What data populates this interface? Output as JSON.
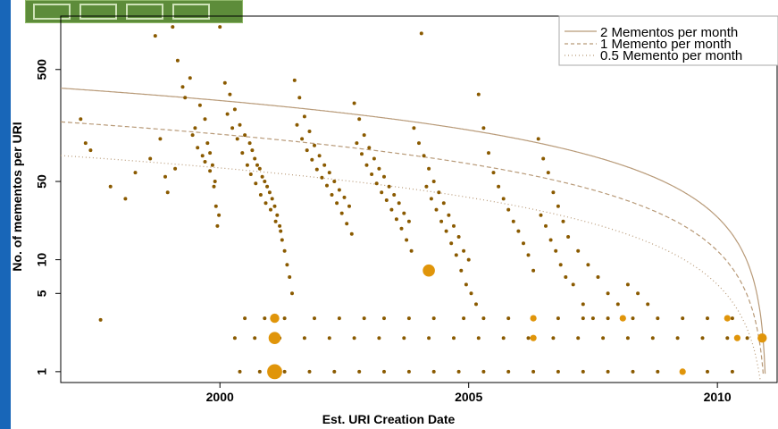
{
  "toolbar": {
    "icons": [
      "first-icon",
      "prev-icon",
      "next-icon",
      "last-icon"
    ]
  },
  "chart_data": {
    "type": "scatter",
    "title": "",
    "xlabel": "Est. URI Creation Date",
    "ylabel": "No. of mementos per URI",
    "xlim": [
      1996.8,
      2011.2
    ],
    "ylim": [
      0.8,
      1500
    ],
    "ylog": true,
    "x_ticks": [
      2000,
      2005,
      2010
    ],
    "x_tick_labels": [
      "2000",
      "2005",
      "2010"
    ],
    "y_ticks": [
      1,
      5,
      10,
      50,
      500
    ],
    "y_tick_labels": [
      "1",
      "5",
      "10",
      "50",
      "500"
    ],
    "colors": {
      "points": "#8a5a00",
      "weighted": "#e0950a",
      "curves": "#b89a78",
      "background": "#1866b8",
      "toolbar": "#5d8c3a"
    },
    "legend": {
      "position": "top-right",
      "entries": [
        {
          "label": "2 Mementos per month",
          "style": "solid",
          "rate": 2
        },
        {
          "label": "1 Memento per month",
          "style": "dashed",
          "rate": 1
        },
        {
          "label": "0.5 Memento per month",
          "style": "dotted",
          "rate": 0.5
        }
      ]
    },
    "end_date": 2011,
    "points": [
      [
        1997.2,
        180
      ],
      [
        1997.3,
        110
      ],
      [
        1997.4,
        95
      ],
      [
        1997.6,
        2.9
      ],
      [
        1997.8,
        45
      ],
      [
        1998.1,
        35
      ],
      [
        1998.3,
        60
      ],
      [
        1998.6,
        80
      ],
      [
        1998.7,
        1000
      ],
      [
        1998.8,
        120
      ],
      [
        1998.9,
        55
      ],
      [
        1998.95,
        40
      ],
      [
        1999.1,
        65
      ],
      [
        1999.3,
        280
      ],
      [
        1999.4,
        420
      ],
      [
        1999.5,
        150
      ],
      [
        1999.6,
        240
      ],
      [
        1999.7,
        180
      ],
      [
        1999.75,
        110
      ],
      [
        1999.8,
        90
      ],
      [
        1999.85,
        70
      ],
      [
        1999.9,
        50
      ],
      [
        1999.92,
        30
      ],
      [
        1999.95,
        20
      ],
      [
        1999.05,
        1200
      ],
      [
        1999.15,
        600
      ],
      [
        1999.25,
        350
      ],
      [
        1999.45,
        130
      ],
      [
        1999.55,
        100
      ],
      [
        1999.65,
        85
      ],
      [
        1999.7,
        75
      ],
      [
        1999.8,
        62
      ],
      [
        1999.88,
        45
      ],
      [
        1999.98,
        25
      ],
      [
        2000.0,
        1200
      ],
      [
        2000.1,
        380
      ],
      [
        2000.2,
        300
      ],
      [
        2000.3,
        220
      ],
      [
        2000.4,
        160
      ],
      [
        2000.5,
        130
      ],
      [
        2000.6,
        110
      ],
      [
        2000.65,
        95
      ],
      [
        2000.7,
        80
      ],
      [
        2000.75,
        70
      ],
      [
        2000.8,
        65
      ],
      [
        2000.85,
        55
      ],
      [
        2000.9,
        50
      ],
      [
        2000.95,
        45
      ],
      [
        2001.0,
        40
      ],
      [
        2001.05,
        35
      ],
      [
        2001.1,
        30
      ],
      [
        2001.15,
        25
      ],
      [
        2001.2,
        20
      ],
      [
        2001.25,
        15
      ],
      [
        2001.3,
        12
      ],
      [
        2001.35,
        9
      ],
      [
        2001.4,
        7
      ],
      [
        2001.45,
        5
      ],
      [
        2000.15,
        200
      ],
      [
        2000.25,
        150
      ],
      [
        2000.35,
        120
      ],
      [
        2000.45,
        90
      ],
      [
        2000.55,
        70
      ],
      [
        2000.62,
        58
      ],
      [
        2000.72,
        48
      ],
      [
        2000.82,
        38
      ],
      [
        2000.92,
        32
      ],
      [
        2001.02,
        28
      ],
      [
        2001.12,
        22
      ],
      [
        2001.22,
        18
      ],
      [
        2001.5,
        400
      ],
      [
        2001.6,
        280
      ],
      [
        2001.7,
        190
      ],
      [
        2001.8,
        140
      ],
      [
        2001.9,
        105
      ],
      [
        2002.0,
        85
      ],
      [
        2002.1,
        70
      ],
      [
        2002.2,
        60
      ],
      [
        2002.3,
        50
      ],
      [
        2002.4,
        42
      ],
      [
        2002.5,
        36
      ],
      [
        2002.6,
        30
      ],
      [
        2001.55,
        160
      ],
      [
        2001.65,
        120
      ],
      [
        2001.75,
        95
      ],
      [
        2001.85,
        78
      ],
      [
        2001.95,
        64
      ],
      [
        2002.05,
        54
      ],
      [
        2002.15,
        46
      ],
      [
        2002.25,
        38
      ],
      [
        2002.35,
        32
      ],
      [
        2002.45,
        26
      ],
      [
        2002.55,
        21
      ],
      [
        2002.65,
        17
      ],
      [
        2002.7,
        250
      ],
      [
        2002.8,
        180
      ],
      [
        2002.9,
        130
      ],
      [
        2003.0,
        100
      ],
      [
        2003.1,
        80
      ],
      [
        2003.2,
        65
      ],
      [
        2003.3,
        55
      ],
      [
        2003.4,
        45
      ],
      [
        2003.5,
        38
      ],
      [
        2003.6,
        32
      ],
      [
        2003.7,
        26
      ],
      [
        2003.8,
        22
      ],
      [
        2002.75,
        110
      ],
      [
        2002.85,
        88
      ],
      [
        2002.95,
        70
      ],
      [
        2003.05,
        58
      ],
      [
        2003.15,
        48
      ],
      [
        2003.25,
        40
      ],
      [
        2003.35,
        34
      ],
      [
        2003.45,
        28
      ],
      [
        2003.55,
        23
      ],
      [
        2003.65,
        19
      ],
      [
        2003.75,
        15
      ],
      [
        2003.85,
        12
      ],
      [
        2003.9,
        150
      ],
      [
        2004.0,
        110
      ],
      [
        2004.1,
        85
      ],
      [
        2004.2,
        65
      ],
      [
        2004.3,
        50
      ],
      [
        2004.4,
        40
      ],
      [
        2004.5,
        32
      ],
      [
        2004.6,
        25
      ],
      [
        2004.7,
        20
      ],
      [
        2004.8,
        16
      ],
      [
        2004.9,
        12
      ],
      [
        2005.0,
        10
      ],
      [
        2004.05,
        1050
      ],
      [
        2004.15,
        45
      ],
      [
        2004.25,
        35
      ],
      [
        2004.35,
        28
      ],
      [
        2004.45,
        22
      ],
      [
        2004.55,
        18
      ],
      [
        2004.65,
        14
      ],
      [
        2004.75,
        11
      ],
      [
        2004.85,
        8
      ],
      [
        2004.95,
        6
      ],
      [
        2005.05,
        5
      ],
      [
        2005.15,
        4
      ],
      [
        2005.2,
        300
      ],
      [
        2005.3,
        150
      ],
      [
        2005.4,
        90
      ],
      [
        2005.5,
        60
      ],
      [
        2005.6,
        45
      ],
      [
        2005.7,
        35
      ],
      [
        2005.8,
        28
      ],
      [
        2005.9,
        22
      ],
      [
        2006.0,
        18
      ],
      [
        2006.1,
        14
      ],
      [
        2006.2,
        11
      ],
      [
        2006.3,
        8
      ],
      [
        2006.4,
        120
      ],
      [
        2006.5,
        80
      ],
      [
        2006.6,
        60
      ],
      [
        2006.7,
        40
      ],
      [
        2006.8,
        30
      ],
      [
        2006.9,
        22
      ],
      [
        2007.0,
        16
      ],
      [
        2007.2,
        12
      ],
      [
        2007.4,
        9
      ],
      [
        2007.6,
        7
      ],
      [
        2007.8,
        5
      ],
      [
        2008.0,
        4
      ],
      [
        2008.2,
        6
      ],
      [
        2008.4,
        5
      ],
      [
        2008.6,
        4
      ],
      [
        2006.45,
        25
      ],
      [
        2006.55,
        20
      ],
      [
        2006.65,
        15
      ],
      [
        2006.75,
        12
      ],
      [
        2006.85,
        9
      ],
      [
        2006.95,
        7
      ],
      [
        2007.1,
        6
      ],
      [
        2007.3,
        4
      ],
      [
        2007.5,
        3
      ],
      [
        2000.5,
        3
      ],
      [
        2000.9,
        3
      ],
      [
        2001.3,
        3
      ],
      [
        2001.9,
        3
      ],
      [
        2002.4,
        3
      ],
      [
        2002.9,
        3
      ],
      [
        2003.3,
        3
      ],
      [
        2003.8,
        3
      ],
      [
        2004.3,
        3
      ],
      [
        2004.9,
        3
      ],
      [
        2005.3,
        3
      ],
      [
        2005.8,
        3
      ],
      [
        2006.3,
        3
      ],
      [
        2006.8,
        3
      ],
      [
        2007.3,
        3
      ],
      [
        2007.8,
        3
      ],
      [
        2008.3,
        3
      ],
      [
        2008.8,
        3
      ],
      [
        2009.3,
        3
      ],
      [
        2009.8,
        3
      ],
      [
        2010.3,
        3
      ],
      [
        2000.3,
        2
      ],
      [
        2000.7,
        2
      ],
      [
        2001.2,
        2
      ],
      [
        2001.7,
        2
      ],
      [
        2002.2,
        2
      ],
      [
        2002.7,
        2
      ],
      [
        2003.2,
        2
      ],
      [
        2003.7,
        2
      ],
      [
        2004.2,
        2
      ],
      [
        2004.7,
        2
      ],
      [
        2005.2,
        2
      ],
      [
        2005.7,
        2
      ],
      [
        2006.2,
        2
      ],
      [
        2006.7,
        2
      ],
      [
        2007.2,
        2
      ],
      [
        2007.7,
        2
      ],
      [
        2008.2,
        2
      ],
      [
        2008.7,
        2
      ],
      [
        2009.2,
        2
      ],
      [
        2009.7,
        2
      ],
      [
        2010.2,
        2
      ],
      [
        2010.6,
        2
      ],
      [
        2000.4,
        1
      ],
      [
        2000.8,
        1
      ],
      [
        2001.3,
        1
      ],
      [
        2001.8,
        1
      ],
      [
        2002.3,
        1
      ],
      [
        2002.8,
        1
      ],
      [
        2003.3,
        1
      ],
      [
        2003.8,
        1
      ],
      [
        2004.3,
        1
      ],
      [
        2004.8,
        1
      ],
      [
        2005.3,
        1
      ],
      [
        2005.8,
        1
      ],
      [
        2006.3,
        1
      ],
      [
        2006.8,
        1
      ],
      [
        2007.3,
        1
      ],
      [
        2007.8,
        1
      ],
      [
        2008.3,
        1
      ],
      [
        2008.8,
        1
      ],
      [
        2009.3,
        1
      ],
      [
        2009.8,
        1
      ],
      [
        2010.3,
        1
      ]
    ],
    "weighted_points": [
      [
        2001.1,
        3,
        2
      ],
      [
        2001.1,
        2,
        3
      ],
      [
        2001.1,
        1,
        4
      ],
      [
        2004.2,
        8,
        3
      ],
      [
        2006.3,
        3,
        1
      ],
      [
        2006.3,
        2,
        1
      ],
      [
        2008.1,
        3,
        1
      ],
      [
        2009.3,
        1,
        1
      ],
      [
        2010.2,
        3,
        1
      ],
      [
        2010.4,
        2,
        1
      ],
      [
        2010.9,
        2,
        2
      ]
    ]
  }
}
